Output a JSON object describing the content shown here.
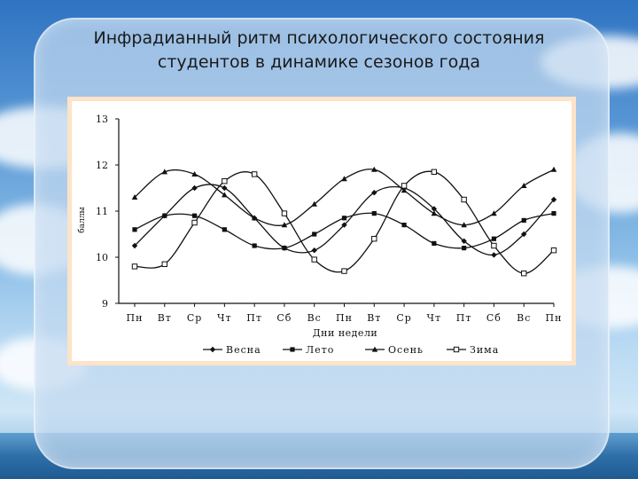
{
  "slide": {
    "title_line1": "Инфрадианный ритм психологического состояния",
    "title_line2": "студентов в динамике сезонов года"
  },
  "chart_data": {
    "type": "line",
    "title": "",
    "xlabel": "Дни недели",
    "ylabel": "баллы",
    "ylim": [
      9,
      13
    ],
    "yticks": [
      "13",
      "12",
      "11",
      "10",
      "9"
    ],
    "categories": [
      "Пн",
      "Вт",
      "Ср",
      "Чт",
      "Пт",
      "Сб",
      "Вс",
      "Пн",
      "Вт",
      "Ср",
      "Чт",
      "Пт",
      "Сб",
      "Вс",
      "Пн"
    ],
    "grid": false,
    "legend_position": "bottom",
    "series": [
      {
        "name": "Весна",
        "marker": "diamond",
        "values": [
          10.25,
          10.9,
          11.5,
          11.5,
          10.85,
          10.2,
          10.15,
          10.7,
          11.4,
          11.5,
          11.05,
          10.35,
          10.05,
          10.5,
          11.25
        ]
      },
      {
        "name": "Лето",
        "marker": "square",
        "values": [
          10.6,
          10.9,
          10.9,
          10.6,
          10.25,
          10.2,
          10.5,
          10.85,
          10.95,
          10.7,
          10.3,
          10.2,
          10.4,
          10.8,
          10.95
        ]
      },
      {
        "name": "Осень",
        "marker": "triangle",
        "values": [
          11.3,
          11.85,
          11.8,
          11.35,
          10.85,
          10.7,
          11.15,
          11.7,
          11.9,
          11.45,
          10.95,
          10.7,
          10.95,
          11.55,
          11.9
        ]
      },
      {
        "name": "Зима",
        "marker": "open-square",
        "values": [
          9.8,
          9.85,
          10.75,
          11.65,
          11.8,
          10.95,
          9.95,
          9.7,
          10.4,
          11.55,
          11.85,
          11.25,
          10.25,
          9.65,
          10.15
        ]
      }
    ]
  }
}
